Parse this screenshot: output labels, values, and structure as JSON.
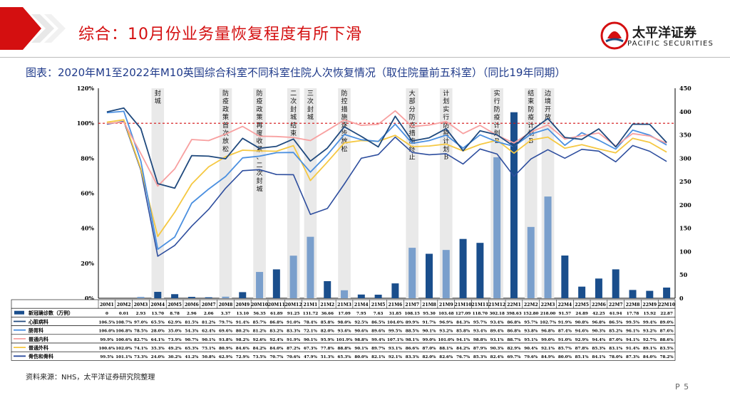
{
  "header": {
    "title": "综合：10月份业务量恢复程度有所下滑",
    "logo_cn": "太平洋证券",
    "logo_en": "PACIFIC SECURITIES"
  },
  "subtitle": "图表：2020年M1至2022年M10英国综合科室不同科室住院人次恢复情况（取住院量前五科室）（同比19年同期）",
  "source": "资料来源：NHS，太平洋证券研究院整理",
  "page_number": "P 5",
  "colors": {
    "red": "#d40f10",
    "navy": "#1f3f7a",
    "bar_dark": "#1a4e8c",
    "bar_light": "#7a9fcc",
    "cardiac": "#1f497d",
    "ortho": "#4a8fe0",
    "gensurg": "#f8a0a0",
    "genmed": "#f5c842",
    "geriatric": "#2e4e9e"
  },
  "chart_data": {
    "type": "line",
    "categories": [
      "20M1",
      "20M2",
      "20M3",
      "20M4",
      "20M5",
      "20M6",
      "20M7",
      "20M8",
      "20M9",
      "20M10",
      "20M11",
      "20M12",
      "21M1",
      "21M2",
      "21M3",
      "21M4",
      "21M5",
      "21M6",
      "21M7",
      "21M8",
      "21M9",
      "21M10",
      "21M11",
      "21M12",
      "22M1",
      "22M2",
      "22M3",
      "22M4",
      "22M5",
      "22M6",
      "22M7",
      "22M8",
      "22M9",
      "22M10"
    ],
    "y_left": {
      "min": 0,
      "max": 120,
      "ticks": [
        "0%",
        "20%",
        "40%",
        "60%",
        "80%",
        "100%",
        "120%"
      ]
    },
    "y_right": {
      "min": 0,
      "max": 450,
      "ticks": [
        "0",
        "50",
        "100",
        "150",
        "200",
        "250",
        "300",
        "350",
        "400",
        "450"
      ]
    },
    "reference_line": 100,
    "bars": {
      "name": "新冠确诊数（万例）",
      "values": [
        0,
        0.01,
        2.93,
        13.7,
        8.78,
        2.96,
        2.06,
        3.37,
        13.1,
        56.35,
        61.89,
        91.25,
        131.72,
        36.66,
        17.09,
        7.95,
        7.63,
        31.85,
        108.15,
        95.3,
        103.48,
        127.09,
        118.7,
        302.18,
        398.63,
        152.8,
        218.0,
        91.57,
        24.89,
        42.25,
        61.94,
        17.78,
        15.92,
        22.87
      ],
      "labels": [
        "0",
        "0.01",
        "2.93",
        "13.70",
        "8.78",
        "2.96",
        "2.06",
        "3.37",
        "13.10",
        "56.35",
        "61.89",
        "91.25",
        "131.72",
        "36.66",
        "17.09",
        "7.95",
        "7.63",
        "31.85",
        "108.15",
        "95.30",
        "103.48",
        "127.09",
        "118.70",
        "302.18",
        "398.63",
        "152.80",
        "218.00",
        "91.57",
        "24.89",
        "42.25",
        "61.94",
        "17.78",
        "15.92",
        "22.87"
      ],
      "light_idx": [
        0,
        1,
        2,
        7,
        9,
        11,
        12,
        14,
        18,
        20,
        23,
        25,
        26
      ]
    },
    "series": [
      {
        "name": "心脏病科",
        "key": "cardiac",
        "values": [
          106.5,
          108.7,
          97.0,
          65.5,
          62.9,
          81.5,
          81.2,
          79.7,
          91.4,
          85.7,
          86.8,
          91.0,
          78.4,
          85.8,
          98.0,
          92.5,
          86.5,
          104.0,
          89.9,
          91.7,
          96.9,
          84.3,
          95.7,
          93.4,
          86.8,
          95.7,
          102.7,
          91.9,
          90.8,
          96.8,
          86.5,
          99.5,
          99.4,
          89.0
        ],
        "labels": [
          "106.5%",
          "108.7%",
          "97.0%",
          "65.5%",
          "62.9%",
          "81.5%",
          "81.2%",
          "79.7%",
          "91.4%",
          "85.7%",
          "86.8%",
          "91.0%",
          "78.4%",
          "85.8%",
          "98.0%",
          "92.5%",
          "86.5%",
          "104.0%",
          "89.9%",
          "91.7%",
          "96.9%",
          "84.3%",
          "95.7%",
          "93.4%",
          "86.8%",
          "95.7%",
          "102.7%",
          "91.9%",
          "90.8%",
          "96.8%",
          "86.5%",
          "99.5%",
          "99.4%",
          "89.0%"
        ]
      },
      {
        "name": "肠胃科",
        "key": "ortho",
        "values": [
          106.0,
          106.8,
          78.5,
          28.0,
          35.0,
          54.3,
          62.4,
          69.6,
          80.2,
          81.2,
          83.2,
          83.3,
          72.1,
          82.0,
          93.6,
          90.6,
          89.6,
          99.5,
          88.5,
          90.1,
          93.2,
          85.8,
          93.4,
          89.4,
          86.8,
          93.8,
          96.8,
          87.4,
          94.6,
          90.3,
          85.2,
          96.1,
          93.2,
          87.6
        ],
        "labels": [
          "106.0%",
          "106.8%",
          "78.5%",
          "28.0%",
          "35.0%",
          "54.3%",
          "62.4%",
          "69.6%",
          "80.2%",
          "81.2%",
          "83.2%",
          "83.3%",
          "72.1%",
          "82.0%",
          "93.6%",
          "90.6%",
          "89.6%",
          "99.5%",
          "88.5%",
          "90.1%",
          "93.2%",
          "85.8%",
          "93.4%",
          "89.4%",
          "86.8%",
          "93.8%",
          "96.8%",
          "87.4%",
          "94.6%",
          "90.3%",
          "85.2%",
          "96.1%",
          "93.2%",
          "87.6%"
        ]
      },
      {
        "name": "普通内科",
        "key": "gensurg",
        "values": [
          99.9,
          100.6,
          82.7,
          64.1,
          73.9,
          90.7,
          90.1,
          93.8,
          98.2,
          92.6,
          92.4,
          91.9,
          90.1,
          95.9,
          101.9,
          98.8,
          99.4,
          107.1,
          98.1,
          99.0,
          101.0,
          94.1,
          98.8,
          93.1,
          88.7,
          95.1,
          99.0,
          91.0,
          92.9,
          94.4,
          87.0,
          94.1,
          92.7,
          88.6
        ],
        "labels": [
          "99.9%",
          "100.6%",
          "82.7%",
          "64.1%",
          "73.9%",
          "90.7%",
          "90.1%",
          "93.8%",
          "98.2%",
          "92.6%",
          "92.4%",
          "91.9%",
          "90.1%",
          "95.9%",
          "101.9%",
          "98.8%",
          "99.4%",
          "107.1%",
          "98.1%",
          "99.0%",
          "101.0%",
          "94.1%",
          "98.8%",
          "93.1%",
          "88.7%",
          "95.1%",
          "99.0%",
          "91.0%",
          "92.9%",
          "94.4%",
          "87.0%",
          "94.1%",
          "92.7%",
          "88.6%"
        ]
      },
      {
        "name": "普通外科",
        "key": "genmed",
        "values": [
          100.6,
          102.0,
          74.1,
          35.3,
          49.2,
          65.3,
          75.1,
          80.9,
          84.6,
          84.2,
          84.0,
          87.2,
          67.3,
          77.8,
          88.8,
          90.1,
          89.7,
          93.1,
          86.6,
          87.0,
          88.1,
          84.2,
          87.9,
          90.3,
          82.9,
          90.4,
          92.1,
          85.7,
          87.8,
          85.3,
          83.1,
          91.4,
          89.1,
          83.5
        ],
        "labels": [
          "100.6%",
          "102.0%",
          "74.1%",
          "35.3%",
          "49.2%",
          "65.3%",
          "75.1%",
          "80.9%",
          "84.6%",
          "84.2%",
          "84.0%",
          "87.2%",
          "67.3%",
          "77.8%",
          "88.8%",
          "90.1%",
          "89.7%",
          "93.1%",
          "86.6%",
          "87.0%",
          "88.1%",
          "84.2%",
          "87.9%",
          "90.3%",
          "82.9%",
          "90.4%",
          "92.1%",
          "85.7%",
          "87.8%",
          "85.3%",
          "83.1%",
          "91.4%",
          "89.1%",
          "83.5%"
        ]
      },
      {
        "name": "骨伤和骨科",
        "key": "geriatric",
        "values": [
          99.5,
          101.1,
          73.3,
          24.0,
          30.2,
          41.2,
          50.8,
          62.9,
          72.9,
          73.5,
          70.7,
          70.6,
          47.9,
          51.3,
          65.3,
          80.0,
          82.1,
          92.1,
          83.3,
          82.0,
          82.6,
          76.7,
          85.3,
          82.4,
          69.7,
          79.6,
          84.9,
          80.0,
          85.1,
          84.1,
          78.0,
          87.3,
          84.0,
          78.2
        ],
        "labels": [
          "99.5%",
          "101.1%",
          "73.3%",
          "24.0%",
          "30.2%",
          "41.2%",
          "50.8%",
          "62.9%",
          "72.9%",
          "73.5%",
          "70.7%",
          "70.6%",
          "47.9%",
          "51.3%",
          "65.3%",
          "80.0%",
          "82.1%",
          "92.1%",
          "83.3%",
          "82.0%",
          "82.6%",
          "76.7%",
          "85.3%",
          "82.4%",
          "69.7%",
          "79.6%",
          "84.9%",
          "80.0%",
          "85.1%",
          "84.1%",
          "78.0%",
          "87.3%",
          "84.0%",
          "78.2%"
        ]
      }
    ],
    "annotations": [
      {
        "idx": 3,
        "text": "封城"
      },
      {
        "idx": 7,
        "text": "防疫政策首次放松"
      },
      {
        "idx": 9,
        "text": "防疫政策再度收紧、二次封城"
      },
      {
        "idx": 11,
        "text": "二次封城结束"
      },
      {
        "idx": 12,
        "text": "三次封城"
      },
      {
        "idx": 14,
        "text": "防控措施逐步放松"
      },
      {
        "idx": 18,
        "text": "大部分防疫措施终止"
      },
      {
        "idx": 20,
        "text": "计划实行防疫计划B"
      },
      {
        "idx": 23,
        "text": "实行防疫计划B"
      },
      {
        "idx": 25,
        "text": "结束防疫计划B"
      },
      {
        "idx": 26,
        "text": "边境开放"
      }
    ]
  }
}
